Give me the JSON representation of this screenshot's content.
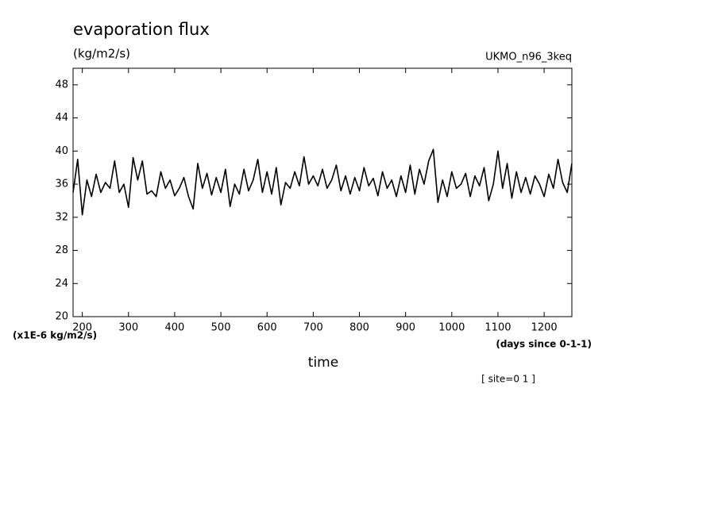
{
  "chart_data": {
    "type": "line",
    "title": "evaporation flux",
    "subtitle": "(kg/m2/s)",
    "dataset": "UKMO_n96_3keq",
    "y_axis_units": "(x1E-6 kg/m2/s)",
    "x_axis_units": "(days since 0-1-1)",
    "x_label": "time",
    "annotation": "[ site=0 1 ]",
    "xlim": [
      180,
      1260
    ],
    "ylim": [
      20,
      50
    ],
    "xticks": [
      200,
      300,
      400,
      500,
      600,
      700,
      800,
      900,
      1000,
      1100,
      1200
    ],
    "yticks": [
      20,
      24,
      28,
      32,
      36,
      40,
      44,
      48
    ],
    "grid": false,
    "x": [
      180,
      190,
      200,
      210,
      220,
      230,
      240,
      250,
      260,
      270,
      280,
      290,
      300,
      310,
      320,
      330,
      340,
      350,
      360,
      370,
      380,
      390,
      400,
      410,
      420,
      430,
      440,
      450,
      460,
      470,
      480,
      490,
      500,
      510,
      520,
      530,
      540,
      550,
      560,
      570,
      580,
      590,
      600,
      610,
      620,
      630,
      640,
      650,
      660,
      670,
      680,
      690,
      700,
      710,
      720,
      730,
      740,
      750,
      760,
      770,
      780,
      790,
      800,
      810,
      820,
      830,
      840,
      850,
      860,
      870,
      880,
      890,
      900,
      910,
      920,
      930,
      940,
      950,
      960,
      970,
      980,
      990,
      1000,
      1010,
      1020,
      1030,
      1040,
      1050,
      1060,
      1070,
      1080,
      1090,
      1100,
      1110,
      1120,
      1130,
      1140,
      1150,
      1160,
      1170,
      1180,
      1190,
      1200,
      1210,
      1220,
      1230,
      1240,
      1250,
      1260
    ],
    "series": [
      {
        "name": "evaporation flux",
        "color": "#000000",
        "values": [
          35.0,
          39.0,
          32.3,
          36.5,
          34.5,
          37.2,
          35.0,
          36.2,
          35.5,
          38.8,
          35.0,
          36.0,
          33.2,
          39.2,
          36.5,
          38.8,
          34.8,
          35.2,
          34.5,
          37.5,
          35.5,
          36.5,
          34.6,
          35.5,
          36.8,
          34.5,
          33.0,
          38.5,
          35.5,
          37.3,
          34.7,
          36.8,
          35.0,
          37.8,
          33.3,
          36.0,
          34.8,
          37.8,
          35.2,
          36.5,
          39.0,
          35.0,
          37.5,
          34.8,
          38.0,
          33.5,
          36.2,
          35.5,
          37.5,
          35.8,
          39.3,
          36.0,
          37.0,
          35.8,
          37.8,
          35.5,
          36.5,
          38.3,
          35.2,
          37.0,
          34.8,
          36.8,
          35.2,
          38.0,
          35.8,
          36.7,
          34.6,
          37.5,
          35.5,
          36.5,
          34.5,
          37.0,
          35.0,
          38.3,
          34.8,
          37.8,
          36.0,
          38.8,
          40.2,
          33.8,
          36.5,
          34.5,
          37.5,
          35.5,
          36.0,
          37.3,
          34.5,
          37.0,
          35.8,
          38.0,
          34.0,
          36.0,
          40.0,
          35.5,
          38.5,
          34.3,
          37.5,
          35.0,
          36.8,
          34.8,
          37.0,
          36.0,
          34.5,
          37.2,
          35.5,
          39.0,
          36.2,
          35.0,
          38.5
        ]
      }
    ]
  }
}
